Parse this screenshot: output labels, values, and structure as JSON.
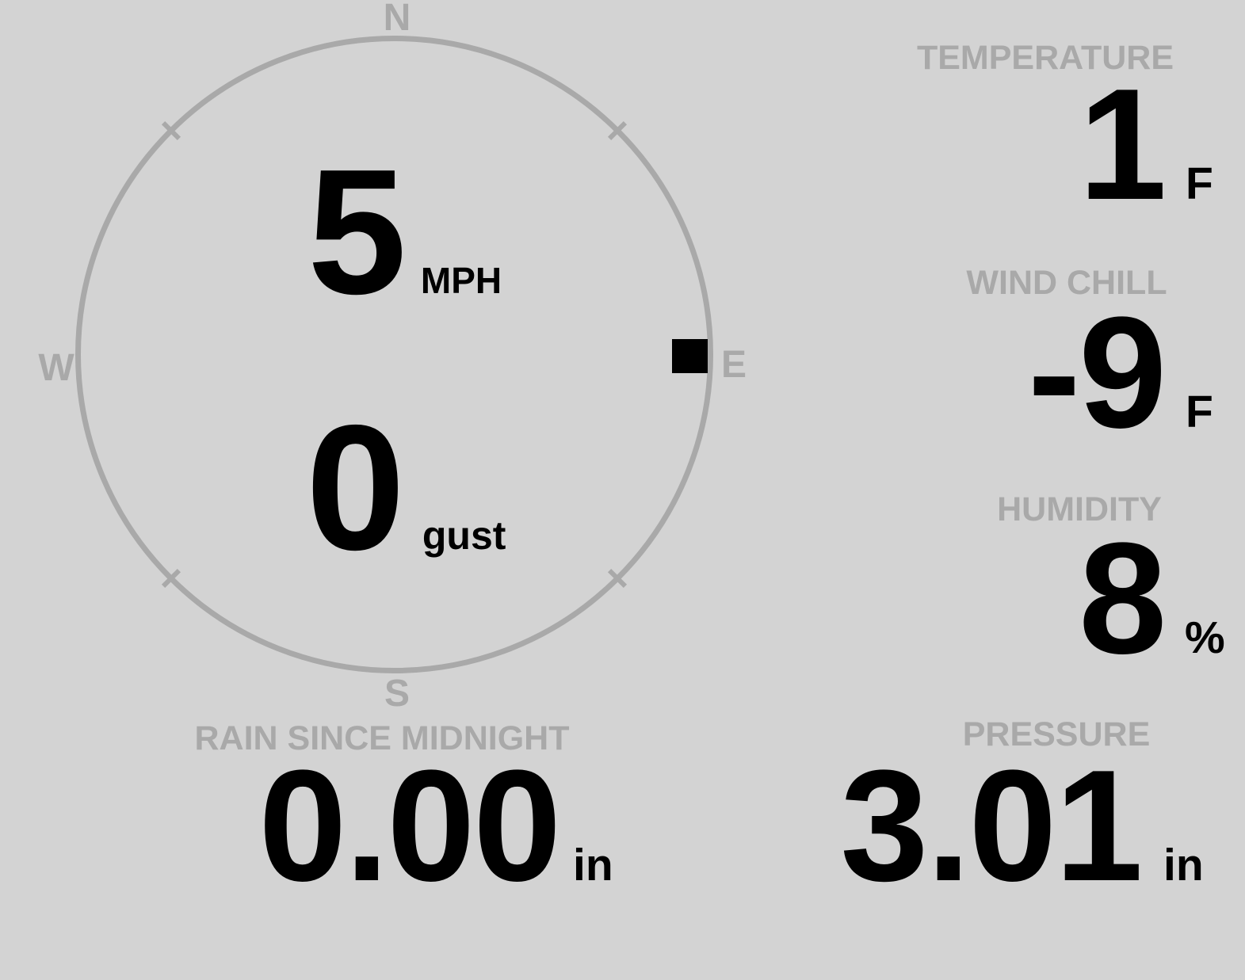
{
  "theme": {
    "background": "#d3d3d3",
    "muted_gray": "#a9a9a9",
    "value_black": "#000000"
  },
  "compass": {
    "north_label": "N",
    "south_label": "S",
    "east_label": "E",
    "west_label": "W",
    "wind_speed": "5",
    "wind_speed_unit": "MPH",
    "gust_value": "0",
    "gust_unit": "gust",
    "marker_points_to": "E"
  },
  "metrics": {
    "temperature": {
      "label": "TEMPERATURE",
      "value": "1",
      "unit": "F"
    },
    "wind_chill": {
      "label": "WIND CHILL",
      "value": "-9",
      "unit": "F"
    },
    "humidity": {
      "label": "HUMIDITY",
      "value": "8",
      "unit": "%"
    },
    "rain_since_midnight": {
      "label": "RAIN SINCE MIDNIGHT",
      "value": "0.00",
      "unit": "in"
    },
    "pressure": {
      "label": "PRESSURE",
      "value": "3.01",
      "unit": "in"
    }
  }
}
